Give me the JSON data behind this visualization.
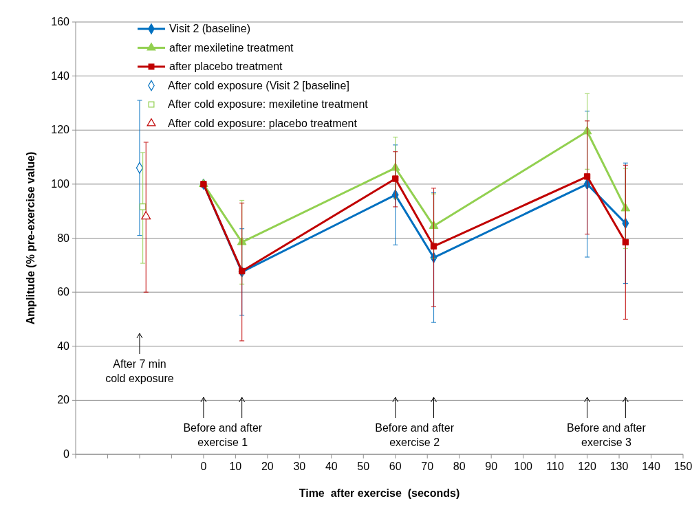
{
  "chart_data": {
    "type": "line",
    "xlabel": "Time  after exercise  (seconds)",
    "ylabel": "Amplitude (% pre-exercise value)",
    "xlim": [
      -40,
      150
    ],
    "xticks": [
      {
        "value": -40,
        "label": null
      },
      {
        "value": -30,
        "label": null
      },
      {
        "value": -20,
        "label": null
      },
      {
        "value": -10,
        "label": null
      },
      0,
      10,
      20,
      30,
      40,
      50,
      60,
      70,
      80,
      90,
      100,
      110,
      120,
      130,
      140,
      150
    ],
    "ylim": [
      0,
      160
    ],
    "yticks": [
      0,
      20,
      40,
      60,
      80,
      100,
      120,
      140,
      160
    ],
    "grid": "y",
    "legend": "top left",
    "series": [
      {
        "name": "Visit 2 (baseline)",
        "marker": "diamond",
        "color": "#0070c0",
        "x": [
          0,
          12,
          60,
          72,
          120,
          132
        ],
        "values": [
          100,
          67.5,
          96,
          72.8,
          100,
          85.5
        ],
        "errors": [
          null,
          16,
          18.5,
          24,
          27,
          22.3
        ]
      },
      {
        "name": "after mexiletine treatment",
        "marker": "triangle",
        "color": "#92d050",
        "x": [
          0,
          12,
          60,
          72,
          120,
          132
        ],
        "values": [
          100,
          78.5,
          106,
          84.5,
          119.5,
          91
        ],
        "errors": [
          null,
          15.5,
          11.4,
          11.9,
          14,
          14.8
        ]
      },
      {
        "name": "after placebo treatment",
        "marker": "square",
        "color": "#c00000",
        "x": [
          0,
          12,
          60,
          72,
          120,
          132
        ],
        "values": [
          100,
          67.8,
          102,
          77,
          102.8,
          78.5
        ],
        "errors": [
          null,
          [
            42,
            93
          ],
          [
            91.6,
            112
          ],
          [
            54.7,
            98.5
          ],
          [
            81.5,
            123.4
          ],
          [
            50,
            107
          ]
        ]
      },
      {
        "name": "After cold exposure (Visit 2 [baseline]",
        "type": "scatter",
        "marker": "diamond",
        "color": "#0070c0",
        "x": [
          -20
        ],
        "values": [
          106
        ],
        "errors": [
          [
            81,
            131
          ]
        ]
      },
      {
        "name": "After cold exposure: mexiletine treatment",
        "type": "scatter",
        "marker": "square",
        "color": "#92d050",
        "x": [
          -19
        ],
        "values": [
          91.6
        ],
        "errors": [
          [
            70.7,
            111.7
          ]
        ]
      },
      {
        "name": "After cold exposure: placebo treatment",
        "type": "scatter",
        "marker": "triangle",
        "color": "#c00000",
        "x": [
          -18
        ],
        "values": [
          88
        ],
        "errors": [
          [
            60,
            115.5
          ]
        ]
      }
    ],
    "annotations": [
      "After 7 min\ncold exposure",
      "Before and after\nexercise 1",
      "Before and after\nexercise 2",
      "Before and after\nexercise 3"
    ]
  }
}
